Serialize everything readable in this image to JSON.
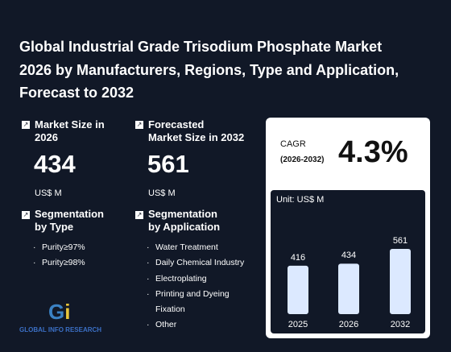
{
  "title_lines": [
    "Global Industrial Grade Trisodium Phosphate Market",
    "2026 by Manufacturers, Regions, Type and Application,",
    "Forecast to 2032"
  ],
  "market_size": {
    "label_lines": [
      "Market Size in",
      "2026"
    ],
    "value": 434,
    "unit": "US$ M"
  },
  "forecast_size": {
    "label_lines": [
      "Forecasted",
      "Market Size in 2032"
    ],
    "value": 561,
    "unit": "US$ M"
  },
  "segmentation_type": {
    "title_lines": [
      "Segmentation",
      "by Type"
    ],
    "items": [
      "Purity≥97%",
      "Purity≥98%"
    ]
  },
  "segmentation_application": {
    "title_lines": [
      "Segmentation",
      "by Application"
    ],
    "items": [
      "Water Treatment",
      "Daily Chemical Industry",
      "Electroplating",
      "Printing and Dyeing Fixation",
      "Other"
    ]
  },
  "cagr": {
    "label": "CAGR",
    "period": "(2026-2032)",
    "value": "4.3%"
  },
  "logo_text": "GLOBAL INFO RESEARCH",
  "chart_data": {
    "type": "bar",
    "unit_label": "Unit: US$ M",
    "categories": [
      "2025",
      "2026",
      "2032"
    ],
    "values": [
      416,
      434,
      561
    ],
    "color": "#dce9ff"
  }
}
